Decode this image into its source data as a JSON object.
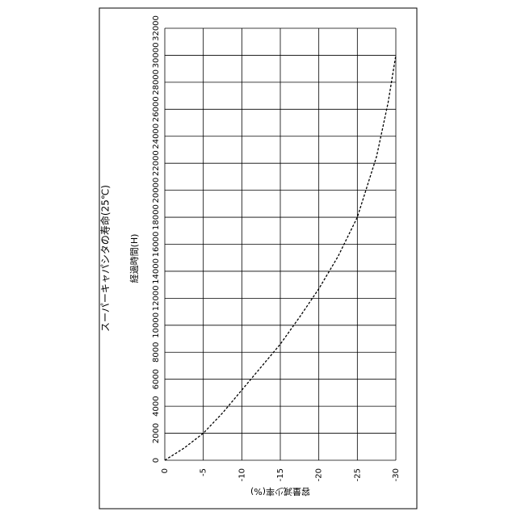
{
  "chart_data": {
    "type": "line",
    "title": "スーパーキャパシタの寿命(25℃)",
    "x_label": "容量減少率(%)",
    "y_label": "経過時間(H)",
    "x": [
      0,
      -2.5,
      -5,
      -7.5,
      -10,
      -12.5,
      -15,
      -17.5,
      -20,
      -22.5,
      -25,
      -27.5,
      -29,
      -30
    ],
    "values": [
      0,
      900,
      2000,
      3500,
      5200,
      6900,
      8600,
      10600,
      12700,
      15100,
      18000,
      22500,
      26500,
      30000
    ],
    "color": "#000000",
    "xlim": [
      0,
      -30
    ],
    "xticks": [
      0,
      -5,
      -10,
      -15,
      -20,
      -25,
      -30
    ],
    "ylim": [
      0,
      32000
    ],
    "yticks": [
      0,
      2000,
      4000,
      6000,
      8000,
      10000,
      12000,
      14000,
      16000,
      18000,
      20000,
      22000,
      24000,
      26000,
      28000,
      30000,
      32000
    ],
    "grid": true
  }
}
